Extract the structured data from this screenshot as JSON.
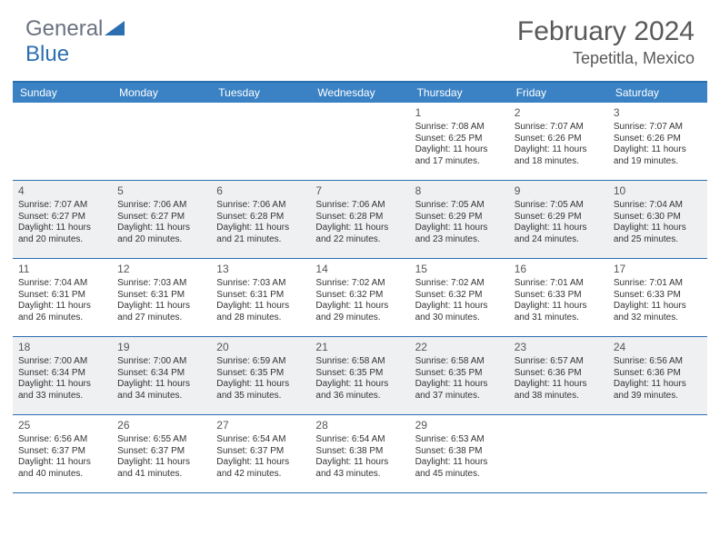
{
  "logo": {
    "text1": "General",
    "text2": "Blue"
  },
  "title": "February 2024",
  "location": "Tepetitla, Mexico",
  "headers": [
    "Sunday",
    "Monday",
    "Tuesday",
    "Wednesday",
    "Thursday",
    "Friday",
    "Saturday"
  ],
  "colors": {
    "headerBg": "#3b82c4",
    "borderTop": "#2b6fb0",
    "rowBorder": "#2b6fb0",
    "shaded": "#eef0f2",
    "title": "#595959"
  },
  "weeks": [
    [
      {
        "day": "",
        "sunrise": "",
        "sunset": "",
        "daylight": ""
      },
      {
        "day": "",
        "sunrise": "",
        "sunset": "",
        "daylight": ""
      },
      {
        "day": "",
        "sunrise": "",
        "sunset": "",
        "daylight": ""
      },
      {
        "day": "",
        "sunrise": "",
        "sunset": "",
        "daylight": ""
      },
      {
        "day": "1",
        "sunrise": "Sunrise: 7:08 AM",
        "sunset": "Sunset: 6:25 PM",
        "daylight": "Daylight: 11 hours and 17 minutes."
      },
      {
        "day": "2",
        "sunrise": "Sunrise: 7:07 AM",
        "sunset": "Sunset: 6:26 PM",
        "daylight": "Daylight: 11 hours and 18 minutes."
      },
      {
        "day": "3",
        "sunrise": "Sunrise: 7:07 AM",
        "sunset": "Sunset: 6:26 PM",
        "daylight": "Daylight: 11 hours and 19 minutes."
      }
    ],
    [
      {
        "day": "4",
        "sunrise": "Sunrise: 7:07 AM",
        "sunset": "Sunset: 6:27 PM",
        "daylight": "Daylight: 11 hours and 20 minutes."
      },
      {
        "day": "5",
        "sunrise": "Sunrise: 7:06 AM",
        "sunset": "Sunset: 6:27 PM",
        "daylight": "Daylight: 11 hours and 20 minutes."
      },
      {
        "day": "6",
        "sunrise": "Sunrise: 7:06 AM",
        "sunset": "Sunset: 6:28 PM",
        "daylight": "Daylight: 11 hours and 21 minutes."
      },
      {
        "day": "7",
        "sunrise": "Sunrise: 7:06 AM",
        "sunset": "Sunset: 6:28 PM",
        "daylight": "Daylight: 11 hours and 22 minutes."
      },
      {
        "day": "8",
        "sunrise": "Sunrise: 7:05 AM",
        "sunset": "Sunset: 6:29 PM",
        "daylight": "Daylight: 11 hours and 23 minutes."
      },
      {
        "day": "9",
        "sunrise": "Sunrise: 7:05 AM",
        "sunset": "Sunset: 6:29 PM",
        "daylight": "Daylight: 11 hours and 24 minutes."
      },
      {
        "day": "10",
        "sunrise": "Sunrise: 7:04 AM",
        "sunset": "Sunset: 6:30 PM",
        "daylight": "Daylight: 11 hours and 25 minutes."
      }
    ],
    [
      {
        "day": "11",
        "sunrise": "Sunrise: 7:04 AM",
        "sunset": "Sunset: 6:31 PM",
        "daylight": "Daylight: 11 hours and 26 minutes."
      },
      {
        "day": "12",
        "sunrise": "Sunrise: 7:03 AM",
        "sunset": "Sunset: 6:31 PM",
        "daylight": "Daylight: 11 hours and 27 minutes."
      },
      {
        "day": "13",
        "sunrise": "Sunrise: 7:03 AM",
        "sunset": "Sunset: 6:31 PM",
        "daylight": "Daylight: 11 hours and 28 minutes."
      },
      {
        "day": "14",
        "sunrise": "Sunrise: 7:02 AM",
        "sunset": "Sunset: 6:32 PM",
        "daylight": "Daylight: 11 hours and 29 minutes."
      },
      {
        "day": "15",
        "sunrise": "Sunrise: 7:02 AM",
        "sunset": "Sunset: 6:32 PM",
        "daylight": "Daylight: 11 hours and 30 minutes."
      },
      {
        "day": "16",
        "sunrise": "Sunrise: 7:01 AM",
        "sunset": "Sunset: 6:33 PM",
        "daylight": "Daylight: 11 hours and 31 minutes."
      },
      {
        "day": "17",
        "sunrise": "Sunrise: 7:01 AM",
        "sunset": "Sunset: 6:33 PM",
        "daylight": "Daylight: 11 hours and 32 minutes."
      }
    ],
    [
      {
        "day": "18",
        "sunrise": "Sunrise: 7:00 AM",
        "sunset": "Sunset: 6:34 PM",
        "daylight": "Daylight: 11 hours and 33 minutes."
      },
      {
        "day": "19",
        "sunrise": "Sunrise: 7:00 AM",
        "sunset": "Sunset: 6:34 PM",
        "daylight": "Daylight: 11 hours and 34 minutes."
      },
      {
        "day": "20",
        "sunrise": "Sunrise: 6:59 AM",
        "sunset": "Sunset: 6:35 PM",
        "daylight": "Daylight: 11 hours and 35 minutes."
      },
      {
        "day": "21",
        "sunrise": "Sunrise: 6:58 AM",
        "sunset": "Sunset: 6:35 PM",
        "daylight": "Daylight: 11 hours and 36 minutes."
      },
      {
        "day": "22",
        "sunrise": "Sunrise: 6:58 AM",
        "sunset": "Sunset: 6:35 PM",
        "daylight": "Daylight: 11 hours and 37 minutes."
      },
      {
        "day": "23",
        "sunrise": "Sunrise: 6:57 AM",
        "sunset": "Sunset: 6:36 PM",
        "daylight": "Daylight: 11 hours and 38 minutes."
      },
      {
        "day": "24",
        "sunrise": "Sunrise: 6:56 AM",
        "sunset": "Sunset: 6:36 PM",
        "daylight": "Daylight: 11 hours and 39 minutes."
      }
    ],
    [
      {
        "day": "25",
        "sunrise": "Sunrise: 6:56 AM",
        "sunset": "Sunset: 6:37 PM",
        "daylight": "Daylight: 11 hours and 40 minutes."
      },
      {
        "day": "26",
        "sunrise": "Sunrise: 6:55 AM",
        "sunset": "Sunset: 6:37 PM",
        "daylight": "Daylight: 11 hours and 41 minutes."
      },
      {
        "day": "27",
        "sunrise": "Sunrise: 6:54 AM",
        "sunset": "Sunset: 6:37 PM",
        "daylight": "Daylight: 11 hours and 42 minutes."
      },
      {
        "day": "28",
        "sunrise": "Sunrise: 6:54 AM",
        "sunset": "Sunset: 6:38 PM",
        "daylight": "Daylight: 11 hours and 43 minutes."
      },
      {
        "day": "29",
        "sunrise": "Sunrise: 6:53 AM",
        "sunset": "Sunset: 6:38 PM",
        "daylight": "Daylight: 11 hours and 45 minutes."
      },
      {
        "day": "",
        "sunrise": "",
        "sunset": "",
        "daylight": ""
      },
      {
        "day": "",
        "sunrise": "",
        "sunset": "",
        "daylight": ""
      }
    ]
  ]
}
